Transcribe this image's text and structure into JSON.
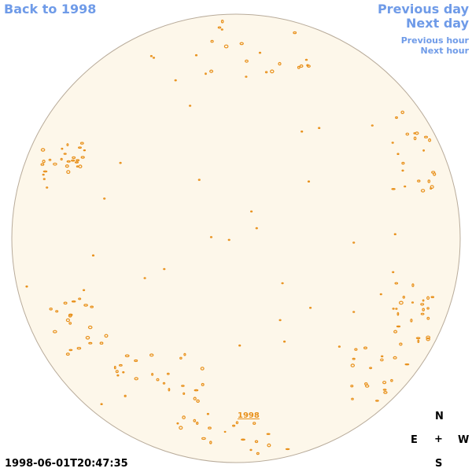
{
  "nav": {
    "back": "Back to 1998",
    "previous_day": "Previous day",
    "next_day": "Next day",
    "previous_hour": "Previous hour",
    "next_hour": "Next hour"
  },
  "disk": {
    "year_link": "1998"
  },
  "timestamp": "1998-06-01T20:47:35",
  "compass": {
    "north": "N",
    "east": "E",
    "center": "+",
    "west": "W",
    "south": "S"
  }
}
